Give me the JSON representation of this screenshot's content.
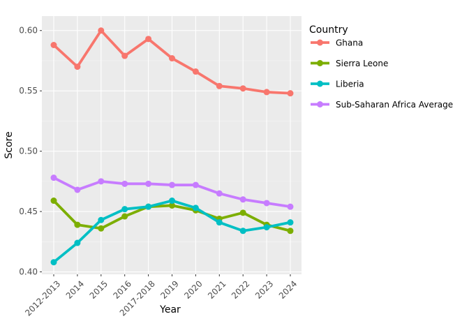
{
  "chart_data": {
    "type": "line",
    "title": "",
    "xlabel": "Year",
    "ylabel": "Score",
    "categories": [
      "2012-2013",
      "2014",
      "2015",
      "2016",
      "2017-2018",
      "2019",
      "2020",
      "2021",
      "2022",
      "2023",
      "2024"
    ],
    "ylim": [
      0.398,
      0.612
    ],
    "yticks": [
      "0.40",
      "0.45",
      "0.50",
      "0.55",
      "0.60"
    ],
    "grid": true,
    "legend_title": "Country",
    "legend_position": "right",
    "series": [
      {
        "name": "Ghana",
        "color": "#F8766D",
        "values": [
          0.588,
          0.57,
          0.6,
          0.579,
          0.593,
          0.577,
          0.566,
          0.554,
          0.552,
          0.549,
          0.548
        ]
      },
      {
        "name": "Sierra Leone",
        "color": "#7CAE00",
        "values": [
          0.459,
          0.439,
          0.436,
          0.446,
          0.454,
          0.455,
          0.451,
          0.444,
          0.449,
          0.439,
          0.434
        ]
      },
      {
        "name": "Liberia",
        "color": "#00BFC4",
        "values": [
          0.408,
          0.424,
          0.443,
          0.452,
          0.454,
          0.459,
          0.453,
          0.441,
          0.434,
          0.437,
          0.441
        ]
      },
      {
        "name": "Sub-Saharan Africa Average",
        "color": "#C77CFF",
        "values": [
          0.478,
          0.468,
          0.475,
          0.473,
          0.473,
          0.472,
          0.472,
          0.465,
          0.46,
          0.457,
          0.454
        ]
      }
    ]
  }
}
